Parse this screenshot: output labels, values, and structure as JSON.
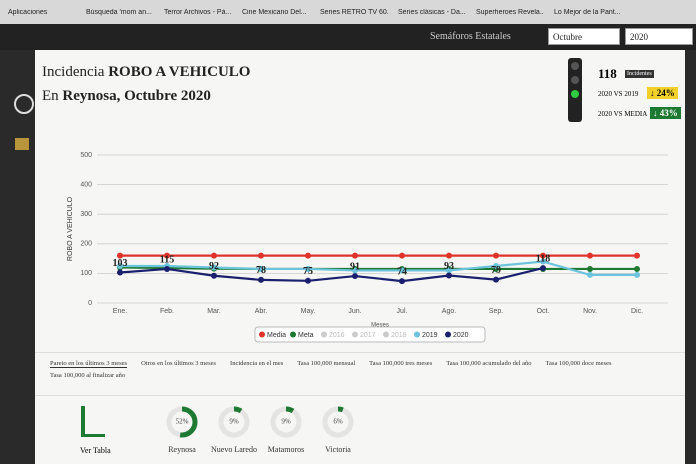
{
  "bookmarks": [
    "Aplicaciones",
    "Búsqueda 'mom an...",
    "Terror Archivos - Pá...",
    "Cine Mexicano Del...",
    "Series RETRO TV 60...",
    "Series clásicas - Da...",
    "Superheroes Revela...",
    "Lo Mejor de la Pant..."
  ],
  "nav": {
    "menu": "Semáforos Estatales",
    "month": "Octubre",
    "year": "2020"
  },
  "header": {
    "title_prefix": "Incidencia",
    "title_main": "ROBO A VEHICULO",
    "subtitle_prefix": "En",
    "subtitle_main": "Reynosa, Octubre 2020"
  },
  "stats": {
    "count": "118",
    "count_label": "Incidentes",
    "vs_2019_label": "2020 VS 2019",
    "vs_2019": "24%",
    "vs_media_label": "2020 VS MEDIA",
    "vs_media": "43%"
  },
  "chart_data": {
    "type": "line",
    "y_label": "ROBO A VEHICULO",
    "x_label": "Meses",
    "categories": [
      "Ene.",
      "Feb.",
      "Mar.",
      "Abr.",
      "May.",
      "Jun.",
      "Jul.",
      "Ago.",
      "Sep.",
      "Oct.",
      "Nov.",
      "Dic."
    ],
    "ylim": [
      0,
      500
    ],
    "yticks": [
      0,
      100,
      200,
      300,
      400,
      500
    ],
    "grid": true,
    "series": [
      {
        "name": "Media",
        "color": "#e0342b",
        "values": [
          160,
          160,
          160,
          160,
          160,
          160,
          160,
          160,
          160,
          160,
          160,
          160
        ]
      },
      {
        "name": "Meta",
        "color": "#1e7a32",
        "values": [
          120,
          118,
          116,
          115,
          115,
          115,
          115,
          115,
          115,
          115,
          115,
          115
        ]
      },
      {
        "name": "2019",
        "color": "#6cc4dc",
        "values": [
          125,
          125,
          120,
          115,
          115,
          110,
          110,
          110,
          125,
          140,
          95,
          95
        ]
      },
      {
        "name": "2020",
        "color": "#1a1f6e",
        "show_labels": true,
        "values": [
          103,
          115,
          92,
          78,
          75,
          91,
          74,
          93,
          79,
          118,
          null,
          null
        ]
      }
    ],
    "hidden_series": [
      {
        "name": "2016",
        "color": "#cccccc"
      },
      {
        "name": "2017",
        "color": "#cccccc"
      },
      {
        "name": "2018",
        "color": "#cccccc"
      }
    ]
  },
  "tabs": [
    "Pareto en los últimos 3 meses",
    "Otros en los últimos 3 meses",
    "Incidencia en el mes",
    "Tasa 100,000 mensual",
    "Tasa 100,000 tres meses",
    "Tasa 100,000 acumulado del año",
    "Tasa 100,000 doce meses",
    "Tasa 100,000 al finalizar año"
  ],
  "table_link": "Ver Tabla",
  "donuts": [
    {
      "name": "Reynosa",
      "value": 52,
      "label": "52%"
    },
    {
      "name": "Nuevo Laredo",
      "value": 9,
      "label": "9%"
    },
    {
      "name": "Matamoros",
      "value": 9,
      "label": "9%"
    },
    {
      "name": "Victoria",
      "value": 6,
      "label": "6%"
    }
  ]
}
